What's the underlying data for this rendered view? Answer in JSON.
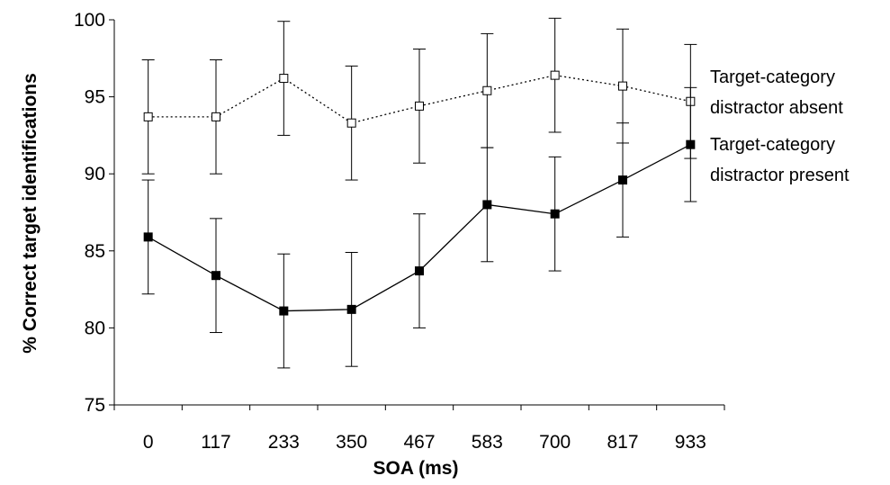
{
  "chart_data": {
    "type": "line",
    "title": "",
    "xlabel": "SOA (ms)",
    "ylabel": "% Correct target identifications",
    "ylim": [
      75,
      100
    ],
    "yticks": [
      "75",
      "80",
      "85",
      "90",
      "95",
      "100"
    ],
    "categories": [
      "0",
      "117",
      "233",
      "350",
      "467",
      "583",
      "700",
      "817",
      "933"
    ],
    "grid": false,
    "series": [
      {
        "id": "absent",
        "name_lines": [
          "Target-category",
          "distractor absent"
        ],
        "marker": "open-square",
        "line_style": "dotted",
        "values": [
          93.7,
          93.7,
          96.2,
          93.3,
          94.4,
          95.4,
          96.4,
          95.7,
          94.7
        ],
        "error": [
          3.7,
          3.7,
          3.7,
          3.7,
          3.7,
          3.7,
          3.7,
          3.7,
          3.7
        ]
      },
      {
        "id": "present",
        "name_lines": [
          "Target-category",
          "distractor present"
        ],
        "marker": "filled-square",
        "line_style": "solid",
        "values": [
          85.9,
          83.4,
          81.1,
          81.2,
          83.7,
          88.0,
          87.4,
          89.6,
          91.9
        ],
        "error": [
          3.7,
          3.7,
          3.7,
          3.7,
          3.7,
          3.7,
          3.7,
          3.7,
          3.7
        ]
      }
    ]
  }
}
